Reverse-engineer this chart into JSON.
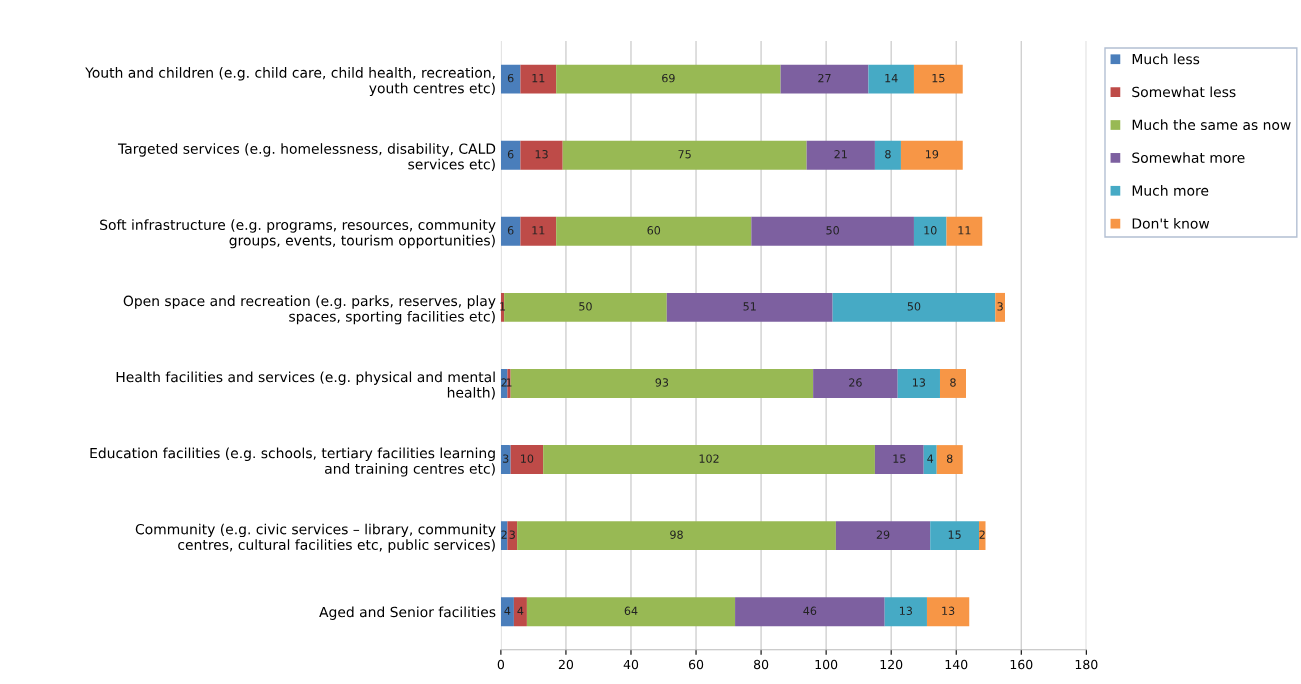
{
  "chart_data": {
    "type": "bar",
    "orientation": "horizontal",
    "stacked": true,
    "data_labels": true,
    "grid": "x",
    "legend": "top right",
    "categories": [
      "Youth and children (e.g. child care, child health, recreation,\nyouth centres etc)",
      "Targeted services (e.g. homelessness, disability, CALD\nservices etc)",
      "Soft infrastructure (e.g. programs, resources, community\ngroups, events, tourism opportunities)",
      "Open space and recreation (e.g. parks, reserves, play\nspaces, sporting facilities etc)",
      "Health facilities and services (e.g. physical and mental\nhealth)",
      "Education facilities (e.g. schools, tertiary facilities learning\nand training centres etc)",
      "Community (e.g. civic services – library, community\ncentres, cultural facilities etc, public services)",
      "Aged and Senior facilities"
    ],
    "xlim": [
      0,
      180
    ],
    "xticks": [
      0,
      20,
      40,
      60,
      80,
      100,
      120,
      140,
      160,
      180
    ],
    "series": [
      {
        "name": "Much less",
        "color": "#4a7ebb",
        "values": [
          6,
          6,
          6,
          null,
          2,
          3,
          2,
          4
        ]
      },
      {
        "name": "Somewhat less",
        "color": "#be4b48",
        "values": [
          11,
          13,
          11,
          1,
          1,
          10,
          3,
          4
        ]
      },
      {
        "name": "Much the same as now",
        "color": "#98b954",
        "values": [
          69,
          75,
          60,
          50,
          93,
          102,
          98,
          64
        ]
      },
      {
        "name": "Somewhat more",
        "color": "#7d60a0",
        "values": [
          27,
          21,
          50,
          51,
          26,
          15,
          29,
          46
        ]
      },
      {
        "name": "Much more",
        "color": "#46aac5",
        "values": [
          14,
          8,
          10,
          50,
          13,
          4,
          15,
          13
        ]
      },
      {
        "name": "Don't know",
        "color": "#f79646",
        "values": [
          15,
          19,
          11,
          3,
          8,
          8,
          2,
          13
        ]
      }
    ]
  }
}
